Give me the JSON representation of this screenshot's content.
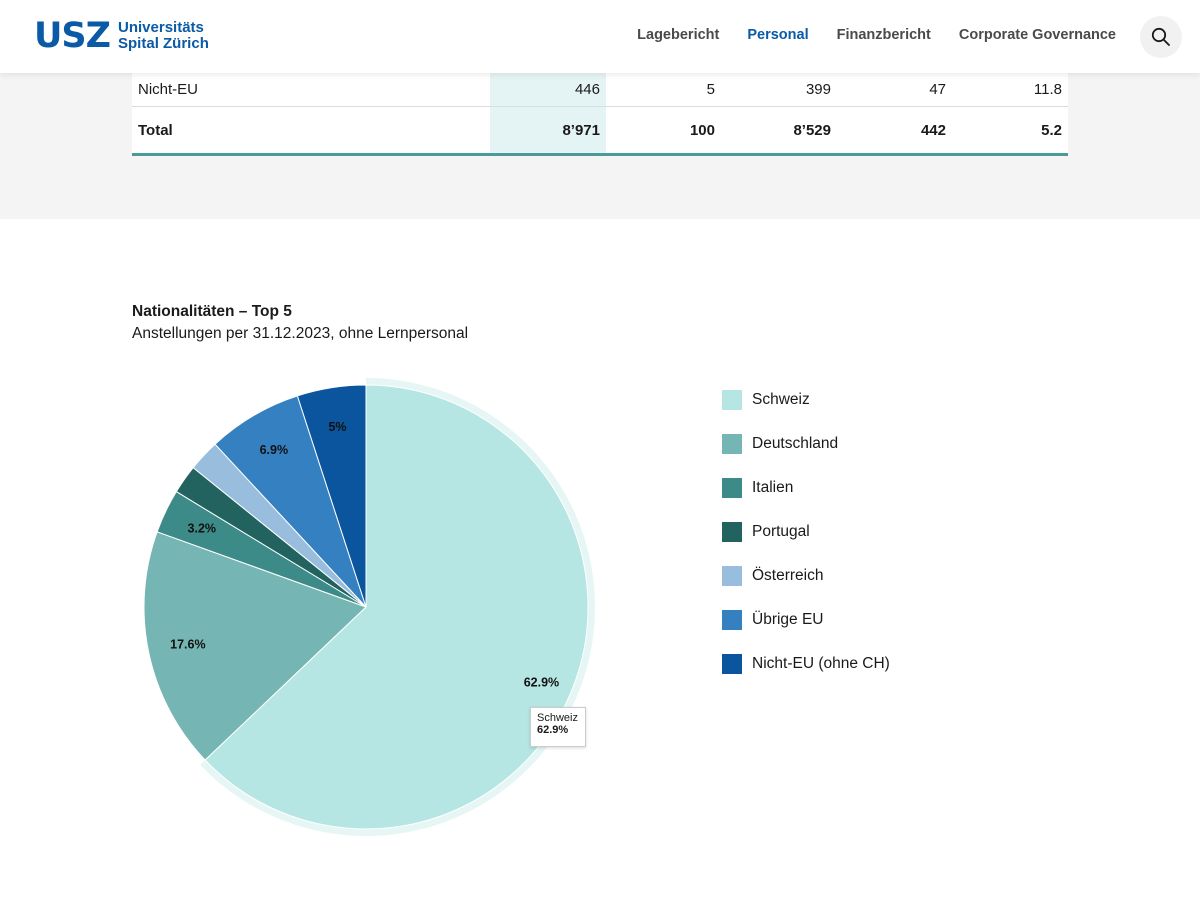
{
  "brand": {
    "mark": "USZ",
    "line1": "Universitäts",
    "line2": "Spital Zürich",
    "color": "#0a5aa5"
  },
  "nav": {
    "items": [
      {
        "label": "Lagebericht",
        "active": false
      },
      {
        "label": "Personal",
        "active": true
      },
      {
        "label": "Finanzbericht",
        "active": false
      },
      {
        "label": "Corporate Governance",
        "active": false
      }
    ],
    "search_icon": "search-icon"
  },
  "table": {
    "rows": [
      {
        "label": "Nicht-EU",
        "values": [
          "446",
          "5",
          "399",
          "47",
          "11.8"
        ]
      },
      {
        "label": "Total",
        "values": [
          "8’971",
          "100",
          "8’529",
          "442",
          "5.2"
        ]
      }
    ]
  },
  "chart": {
    "title": "Nationalitäten – Top 5",
    "subtitle": "Anstellungen per 31.12.2023, ohne Lernpersonal",
    "tooltip": {
      "name": "Schweiz",
      "value": "62.9%"
    }
  },
  "chart_data": {
    "type": "pie",
    "title": "Nationalitäten – Top 5",
    "subtitle": "Anstellungen per 31.12.2023, ohne Lernpersonal",
    "legend_position": "right",
    "slices": [
      {
        "name": "Schweiz",
        "value": 62.9,
        "label": "62.9%",
        "color": "#b5e6e3"
      },
      {
        "name": "Deutschland",
        "value": 17.6,
        "label": "17.6%",
        "color": "#75b6b4"
      },
      {
        "name": "Italien",
        "value": 3.2,
        "label": "3.2%",
        "color": "#3d8b88"
      },
      {
        "name": "Portugal",
        "value": 2.1,
        "label": "",
        "color": "#22635f"
      },
      {
        "name": "Österreich",
        "value": 2.3,
        "label": "",
        "color": "#99bddd"
      },
      {
        "name": "Übrige EU",
        "value": 6.9,
        "label": "6.9%",
        "color": "#3580c0"
      },
      {
        "name": "Nicht-EU (ohne CH)",
        "value": 5.0,
        "label": "5%",
        "color": "#0a559d"
      }
    ]
  }
}
